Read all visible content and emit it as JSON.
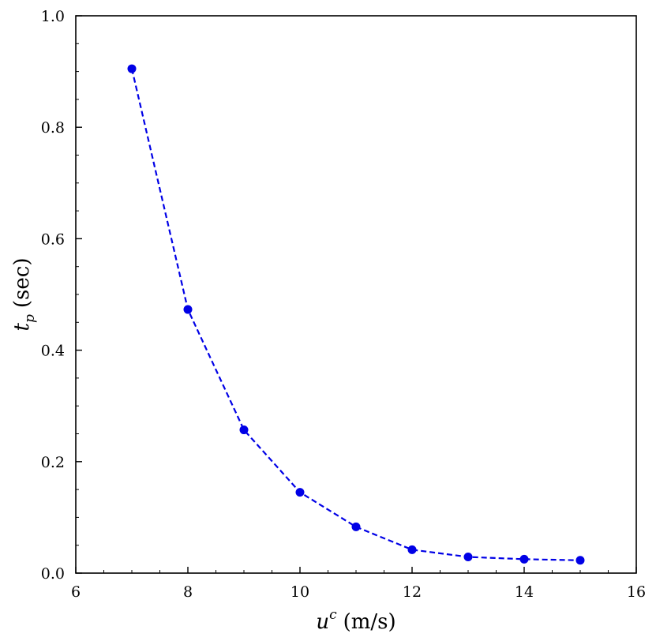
{
  "chart_data": {
    "type": "line",
    "x": [
      7,
      8,
      9,
      10,
      11,
      12,
      13,
      14,
      15
    ],
    "y": [
      0.905,
      0.473,
      0.257,
      0.145,
      0.083,
      0.042,
      0.029,
      0.025,
      0.023
    ],
    "xlim": [
      6,
      16
    ],
    "ylim": [
      0.0,
      1.0
    ],
    "xticks": [
      6,
      8,
      10,
      12,
      14,
      16
    ],
    "yticks": [
      0.0,
      0.2,
      0.4,
      0.6,
      0.8,
      1.0
    ],
    "x_tick_labels": [
      "6",
      "8",
      "10",
      "12",
      "14",
      "16"
    ],
    "y_tick_labels": [
      "0.0",
      "0.2",
      "0.4",
      "0.6",
      "0.8",
      "1.0"
    ],
    "xlabel": {
      "var": "u",
      "sup": "c",
      "unit": "(m/s)"
    },
    "ylabel": {
      "var": "t",
      "sub": "p",
      "unit": "(sec)"
    },
    "title": "",
    "grid": false,
    "line_style": "dashed",
    "marker": "circle",
    "color": "#0000e6"
  }
}
